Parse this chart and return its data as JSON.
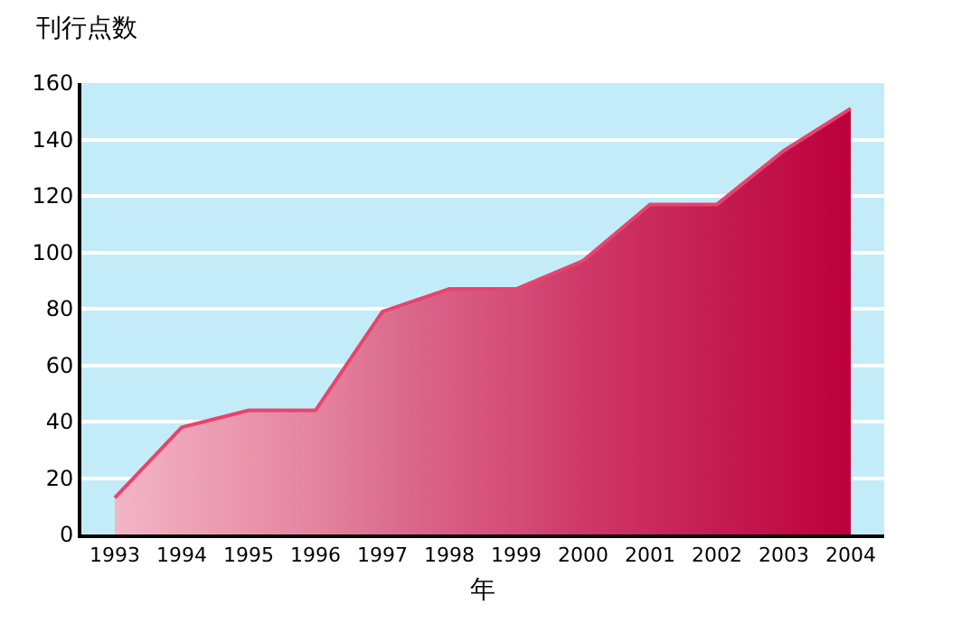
{
  "chart_data": {
    "type": "area",
    "ylabel": "刊行点数",
    "xlabel": "年",
    "categories": [
      "1993",
      "1994",
      "1995",
      "1996",
      "1997",
      "1998",
      "1999",
      "2000",
      "2001",
      "2002",
      "2003",
      "2004"
    ],
    "series": [
      {
        "color": "#e8446e",
        "values": [
          13,
          38,
          44,
          44,
          79,
          87,
          87,
          97,
          117,
          117,
          136,
          151
        ],
        "colors": [
          "#f2b6c6",
          "#eea4b8",
          "#ea94ac",
          "#e484a0",
          "#dc7090",
          "#d85c84",
          "#d44c78",
          "#ce3868",
          "#ca2a5c",
          "#c41c52",
          "#c20e48",
          "#bc003c"
        ]
      }
    ],
    "ylim": [
      0,
      160
    ],
    "yticks": [
      0,
      20,
      40,
      60,
      80,
      100,
      120,
      140,
      160
    ],
    "grid": "y",
    "marker": "none"
  }
}
